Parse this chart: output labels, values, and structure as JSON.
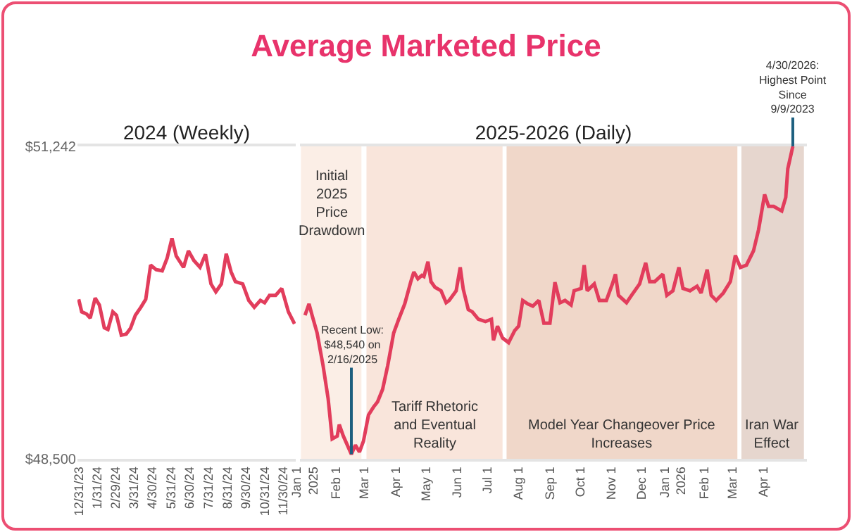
{
  "chart_data": [
    {
      "type": "line",
      "title": "Average Marketed Price",
      "subtitle": "2024 (Weekly)",
      "x": [
        "2023-12-31",
        "2024-01-05",
        "2024-01-13",
        "2024-01-19",
        "2024-01-27",
        "2024-02-03",
        "2024-02-11",
        "2024-02-17",
        "2024-02-25",
        "2024-03-02",
        "2024-03-10",
        "2024-03-18",
        "2024-03-25",
        "2024-04-02",
        "2024-04-11",
        "2024-04-19",
        "2024-04-27",
        "2024-05-06",
        "2024-05-16",
        "2024-05-24",
        "2024-06-01",
        "2024-06-08",
        "2024-06-20",
        "2024-06-28",
        "2024-07-07",
        "2024-07-17",
        "2024-07-26",
        "2024-08-04",
        "2024-08-12",
        "2024-08-21",
        "2024-08-29",
        "2024-09-06",
        "2024-09-13",
        "2024-09-25",
        "2024-10-05",
        "2024-10-14",
        "2024-10-24",
        "2024-10-31",
        "2024-11-08",
        "2024-11-18",
        "2024-11-28",
        "2024-12-09",
        "2024-12-19"
      ],
      "series": [
        {
          "color": "#e23d5c",
          "values": [
            49900,
            49790,
            49770,
            49735,
            49910,
            49850,
            49650,
            49635,
            49790,
            49760,
            49585,
            49595,
            49645,
            49760,
            49830,
            49900,
            50200,
            50160,
            50150,
            50260,
            50435,
            50280,
            50180,
            50325,
            50240,
            50180,
            50295,
            50035,
            49965,
            50035,
            50300,
            50140,
            50055,
            50035,
            49890,
            49830,
            49890,
            49870,
            49935,
            49935,
            49995,
            49790,
            49685
          ]
        }
      ],
      "xlim": [
        "2023-12-29",
        "2024-12-21"
      ],
      "xticks": [
        {
          "value": "2023-12-31",
          "label": "12/31/23"
        },
        {
          "value": "2024-01-31",
          "label": "1/31/24"
        },
        {
          "value": "2024-02-29",
          "label": "2/29/24"
        },
        {
          "value": "2024-03-31",
          "label": "3/31/24"
        },
        {
          "value": "2024-04-30",
          "label": "4/30/24"
        },
        {
          "value": "2024-05-31",
          "label": "5/31/24"
        },
        {
          "value": "2024-06-30",
          "label": "6/30/24"
        },
        {
          "value": "2024-07-31",
          "label": "7/31/24"
        },
        {
          "value": "2024-08-31",
          "label": "8/31/24"
        },
        {
          "value": "2024-09-30",
          "label": "9/30/24"
        },
        {
          "value": "2024-10-31",
          "label": "10/31/24"
        },
        {
          "value": "2024-11-30",
          "label": "11/30/24"
        }
      ],
      "ylim": [
        48500,
        51242
      ],
      "yticks": [
        {
          "value": 48500,
          "label": "$48,500"
        },
        {
          "value": 51242,
          "label": "$51,242"
        }
      ],
      "tick_labels": "xy"
    },
    {
      "type": "line",
      "title": "2025-2026 (Daily)",
      "x": [
        "2025-01-01",
        "2025-01-05",
        "2025-01-08",
        "2025-01-13",
        "2025-01-19",
        "2025-01-24",
        "2025-01-28",
        "2025-02-02",
        "2025-02-04",
        "2025-02-08",
        "2025-02-14",
        "2025-02-16",
        "2025-02-20",
        "2025-02-24",
        "2025-02-28",
        "2025-03-05",
        "2025-03-10",
        "2025-03-14",
        "2025-03-19",
        "2025-03-24",
        "2025-03-30",
        "2025-04-04",
        "2025-04-10",
        "2025-04-16",
        "2025-04-19",
        "2025-04-23",
        "2025-04-27",
        "2025-04-29",
        "2025-05-03",
        "2025-05-06",
        "2025-05-10",
        "2025-05-16",
        "2025-05-21",
        "2025-05-24",
        "2025-05-31",
        "2025-06-04",
        "2025-06-07",
        "2025-06-12",
        "2025-06-16",
        "2025-06-22",
        "2025-06-29",
        "2025-07-05",
        "2025-07-07",
        "2025-07-11",
        "2025-07-16",
        "2025-07-22",
        "2025-07-28",
        "2025-08-01",
        "2025-08-05",
        "2025-08-10",
        "2025-08-15",
        "2025-08-21",
        "2025-08-26",
        "2025-09-01",
        "2025-09-06",
        "2025-09-11",
        "2025-09-16",
        "2025-09-22",
        "2025-09-25",
        "2025-10-02",
        "2025-10-05",
        "2025-10-08",
        "2025-10-15",
        "2025-10-20",
        "2025-10-27",
        "2025-11-02",
        "2025-11-05",
        "2025-11-08",
        "2025-11-16",
        "2025-11-21",
        "2025-11-29",
        "2025-12-05",
        "2025-12-09",
        "2025-12-14",
        "2025-12-22",
        "2025-12-26",
        "2026-01-01",
        "2026-01-07",
        "2026-01-11",
        "2026-01-18",
        "2026-01-25",
        "2026-01-29",
        "2026-02-04",
        "2026-02-08",
        "2026-02-13",
        "2026-02-20",
        "2026-02-27",
        "2026-03-04",
        "2026-03-09",
        "2026-03-15",
        "2026-03-22",
        "2026-03-27",
        "2026-04-02",
        "2026-04-06",
        "2026-04-11",
        "2026-04-19",
        "2026-04-23",
        "2026-04-25",
        "2026-04-30"
      ],
      "series": [
        {
          "color": "#e23d5c",
          "values": [
            49760,
            49860,
            49760,
            49605,
            49315,
            49025,
            48675,
            48700,
            48800,
            48700,
            48580,
            48540,
            48620,
            48560,
            48655,
            48885,
            48955,
            49000,
            49110,
            49315,
            49605,
            49725,
            49860,
            50055,
            50140,
            50080,
            50110,
            50100,
            50230,
            50055,
            50005,
            49975,
            49870,
            49890,
            49975,
            50180,
            49990,
            49810,
            49790,
            49725,
            49705,
            49725,
            49540,
            49665,
            49560,
            49520,
            49625,
            49665,
            49890,
            49860,
            49840,
            49890,
            49690,
            49690,
            50050,
            49870,
            49890,
            49850,
            49975,
            49995,
            50200,
            49975,
            50035,
            49890,
            49890,
            50035,
            50120,
            49935,
            49870,
            49935,
            50035,
            50220,
            50055,
            50055,
            50120,
            49935,
            49975,
            50180,
            49995,
            49975,
            50015,
            49955,
            50160,
            49935,
            49890,
            49955,
            50055,
            50285,
            50180,
            50200,
            50325,
            50510,
            50820,
            50715,
            50715,
            50675,
            50795,
            51045,
            51242
          ]
        }
      ],
      "xlim": [
        "2024-12-27",
        "2026-05-14"
      ],
      "xticks": [
        {
          "value": "2025-01-01",
          "label": "Jan 1\n2025"
        },
        {
          "value": "2025-02-01",
          "label": "Feb 1"
        },
        {
          "value": "2025-03-01",
          "label": "Mar 1"
        },
        {
          "value": "2025-04-01",
          "label": "Apr 1"
        },
        {
          "value": "2025-05-01",
          "label": "May 1"
        },
        {
          "value": "2025-06-01",
          "label": "Jun 1"
        },
        {
          "value": "2025-07-01",
          "label": "Jul 1"
        },
        {
          "value": "2025-08-01",
          "label": "Aug 1"
        },
        {
          "value": "2025-09-01",
          "label": "Sep 1"
        },
        {
          "value": "2025-10-01",
          "label": "Oct 1"
        },
        {
          "value": "2025-11-01",
          "label": "Nov 1"
        },
        {
          "value": "2025-12-01",
          "label": "Dec 1"
        },
        {
          "value": "2026-01-01",
          "label": "Jan 1\n2026"
        },
        {
          "value": "2026-02-01",
          "label": "Feb 1"
        },
        {
          "value": "2026-03-01",
          "label": "Mar 1"
        },
        {
          "value": "2026-04-01",
          "label": "Apr 1"
        }
      ],
      "ylim": [
        48500,
        51242
      ],
      "tick_labels": "x",
      "bands": [
        {
          "axis": "x",
          "from": "2024-12-28",
          "to": "2025-02-26",
          "label": "Initial 2025 Price Drawdown",
          "color": "#fbeee6"
        },
        {
          "axis": "x",
          "from": "2025-03-03",
          "to": "2025-07-16",
          "label": "Tariff Rhetoric and Eventual Reality",
          "color": "#f9e5db"
        },
        {
          "axis": "x",
          "from": "2025-07-20",
          "to": "2026-03-06",
          "label": "Model Year Changeover Price Increases",
          "color": "#f0d7c9"
        },
        {
          "axis": "x",
          "from": "2026-03-10",
          "to": "2026-05-11",
          "label": "Iran War Effect",
          "color": "#e6d6ce"
        }
      ],
      "annotations": [
        {
          "text": "Recent Low: $48,540 on 2/16/2025",
          "x": "2025-02-16",
          "y": 48540
        },
        {
          "text": "4/30/2026: Highest Point Since 9/9/2023",
          "x": "2026-04-30",
          "y": 51242
        }
      ]
    }
  ]
}
